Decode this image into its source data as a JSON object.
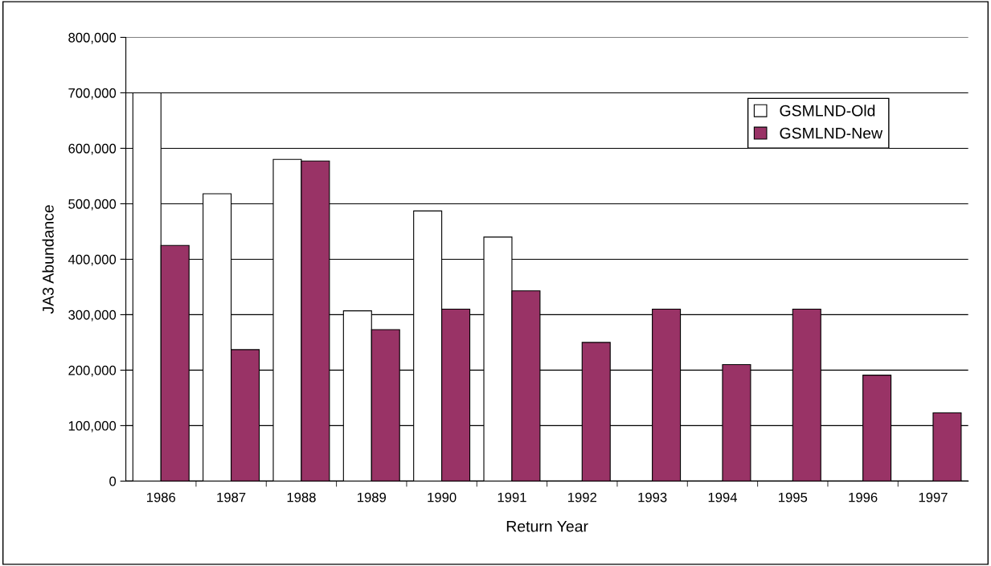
{
  "chart_data": {
    "type": "bar",
    "xlabel": "Return Year",
    "ylabel": "JA3 Abundance",
    "categories": [
      "1986",
      "1987",
      "1988",
      "1989",
      "1990",
      "1991",
      "1992",
      "1993",
      "1994",
      "1995",
      "1996",
      "1997"
    ],
    "series": [
      {
        "name": "GSMLND-Old",
        "color": "#ffffff",
        "values": [
          700000,
          518000,
          580000,
          307000,
          487000,
          440000,
          null,
          null,
          null,
          null,
          null,
          null
        ]
      },
      {
        "name": "GSMLND-New",
        "color": "#993366",
        "values": [
          425000,
          237000,
          577000,
          273000,
          310000,
          343000,
          250000,
          310000,
          210000,
          310000,
          191000,
          123000
        ]
      }
    ],
    "ylim": [
      0,
      800000
    ],
    "yticks": [
      {
        "value": 0,
        "label": "0"
      },
      {
        "value": 100000,
        "label": "100,000"
      },
      {
        "value": 200000,
        "label": "200,000"
      },
      {
        "value": 300000,
        "label": "300,000"
      },
      {
        "value": 400000,
        "label": "400,000"
      },
      {
        "value": 500000,
        "label": "500,000"
      },
      {
        "value": 600000,
        "label": "600,000"
      },
      {
        "value": 700000,
        "label": "700,000"
      },
      {
        "value": 800000,
        "label": "800,000"
      }
    ],
    "grid": "y",
    "legend": "top right"
  }
}
